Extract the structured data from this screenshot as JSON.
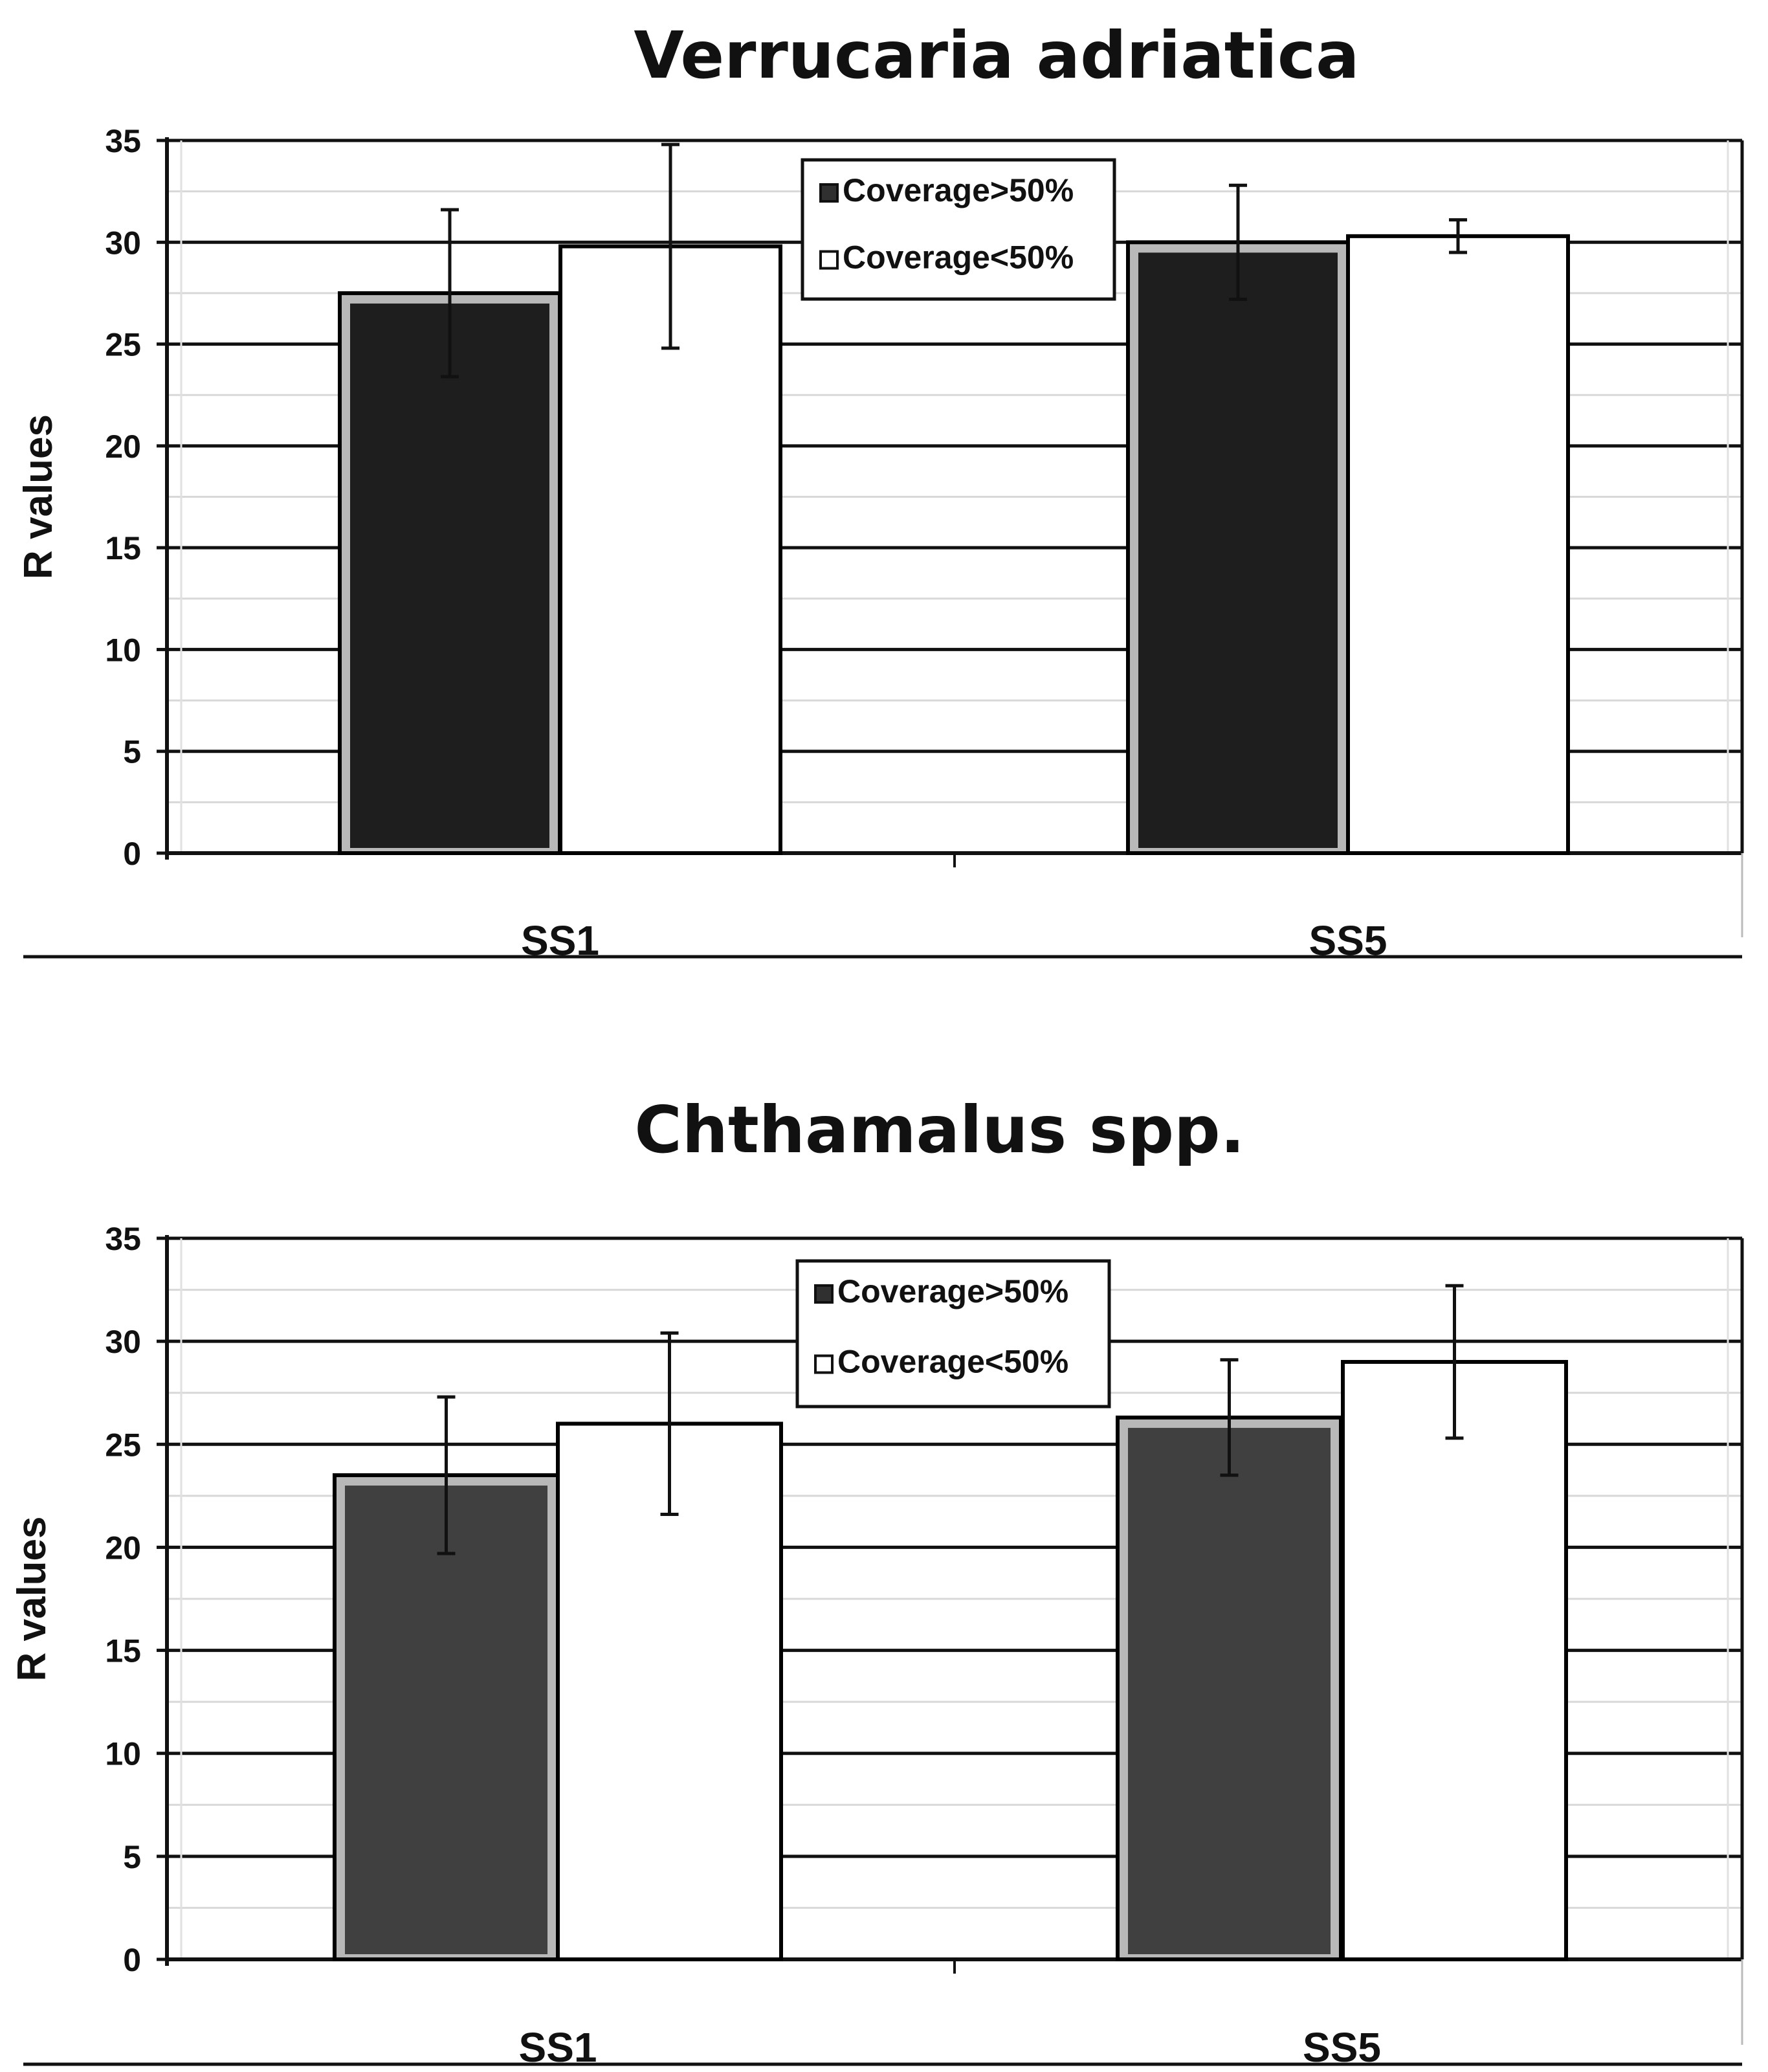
{
  "chart_data": [
    {
      "type": "bar",
      "title": "Verrucaria adriatica",
      "ylabel": "R values",
      "xlabel": "",
      "categories": [
        "SS1",
        "SS5"
      ],
      "ylim": [
        0,
        35
      ],
      "yticks": [
        0,
        5,
        10,
        15,
        20,
        25,
        30,
        35
      ],
      "grid": true,
      "legend_position": "top-center",
      "series": [
        {
          "name": "Coverage>50%",
          "color": "#1e1e1e",
          "values": [
            27.5,
            30.0
          ],
          "errors": [
            4.1,
            2.8
          ]
        },
        {
          "name": "Coverage<50%",
          "color": "#ffffff",
          "values": [
            29.8,
            30.3
          ],
          "errors": [
            5.0,
            0.8
          ]
        }
      ]
    },
    {
      "type": "bar",
      "title": "Chthamalus spp.",
      "ylabel": "R values",
      "xlabel": "",
      "categories": [
        "SS1",
        "SS5"
      ],
      "ylim": [
        0,
        35
      ],
      "yticks": [
        0,
        5,
        10,
        15,
        20,
        25,
        30,
        35
      ],
      "grid": true,
      "legend_position": "top-center",
      "series": [
        {
          "name": "Coverage>50%",
          "color": "#404040",
          "values": [
            23.5,
            26.3
          ],
          "errors": [
            3.8,
            2.8
          ]
        },
        {
          "name": "Coverage<50%",
          "color": "#ffffff",
          "values": [
            26.0,
            29.0
          ],
          "errors": [
            4.4,
            3.7
          ]
        }
      ]
    }
  ]
}
